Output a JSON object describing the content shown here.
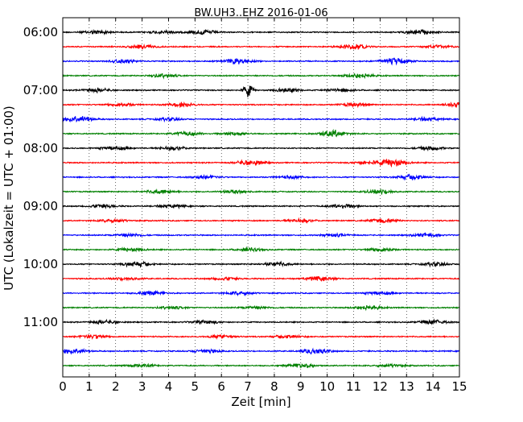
{
  "chart_data": {
    "type": "line",
    "title": "BW.UH3..EHZ 2016-01-06",
    "xlabel": "Zeit  [min]",
    "ylabel": "UTC (Lokalzeit = UTC + 01:00)",
    "xlim": [
      0,
      15
    ],
    "x_ticks": [
      "0",
      "1",
      "2",
      "3",
      "4",
      "5",
      "6",
      "7",
      "8",
      "9",
      "10",
      "11",
      "12",
      "13",
      "14",
      "15"
    ],
    "y_ticks": [
      "06:00",
      "07:00",
      "08:00",
      "09:00",
      "10:00",
      "11:00"
    ],
    "trace_minutes_per_line": 15,
    "grid": "vertical dotted at each minute",
    "trace_colors": [
      "#000000",
      "#ff0000",
      "#0000ff",
      "#008000"
    ],
    "series": [
      {
        "start": "06:00",
        "color": "#000000",
        "events": [
          [
            1.3,
            0.7
          ],
          [
            3.8,
            0.6
          ],
          [
            5.3,
            0.8
          ],
          [
            13.5,
            0.9
          ]
        ]
      },
      {
        "start": "06:15",
        "color": "#ff0000",
        "events": [
          [
            3.0,
            0.6
          ],
          [
            11.0,
            1.0
          ],
          [
            14.2,
            0.5
          ]
        ]
      },
      {
        "start": "06:30",
        "color": "#0000ff",
        "events": [
          [
            2.3,
            0.6
          ],
          [
            6.6,
            1.0
          ],
          [
            12.6,
            1.2
          ]
        ]
      },
      {
        "start": "06:45",
        "color": "#008000",
        "events": [
          [
            3.8,
            0.7
          ],
          [
            11.2,
            0.9
          ]
        ]
      },
      {
        "start": "07:00",
        "color": "#000000",
        "events": [
          [
            1.3,
            0.7
          ],
          [
            7.0,
            2.6
          ],
          [
            8.5,
            0.7
          ],
          [
            10.5,
            0.6
          ]
        ]
      },
      {
        "start": "07:15",
        "color": "#ff0000",
        "events": [
          [
            2.2,
            0.6
          ],
          [
            4.5,
            0.7
          ],
          [
            11.0,
            0.6
          ],
          [
            15.0,
            1.2
          ]
        ]
      },
      {
        "start": "07:30",
        "color": "#0000ff",
        "events": [
          [
            0.6,
            1.3
          ],
          [
            4.0,
            0.5
          ],
          [
            13.8,
            0.6
          ]
        ]
      },
      {
        "start": "07:45",
        "color": "#008000",
        "events": [
          [
            4.7,
            0.7
          ],
          [
            6.5,
            0.6
          ],
          [
            10.2,
            1.2
          ]
        ]
      },
      {
        "start": "08:00",
        "color": "#000000",
        "events": [
          [
            2.0,
            0.6
          ],
          [
            4.2,
            0.6
          ],
          [
            13.9,
            0.6
          ]
        ]
      },
      {
        "start": "08:15",
        "color": "#ff0000",
        "events": [
          [
            7.1,
            1.0
          ],
          [
            11.5,
            0.6
          ],
          [
            12.5,
            1.4
          ]
        ]
      },
      {
        "start": "08:30",
        "color": "#0000ff",
        "events": [
          [
            5.4,
            0.5
          ],
          [
            8.6,
            0.5
          ],
          [
            13.2,
            1.0
          ]
        ]
      },
      {
        "start": "08:45",
        "color": "#008000",
        "events": [
          [
            3.7,
            0.7
          ],
          [
            6.5,
            0.6
          ],
          [
            12.0,
            0.8
          ]
        ]
      },
      {
        "start": "09:00",
        "color": "#000000",
        "events": [
          [
            1.5,
            0.6
          ],
          [
            4.1,
            0.6
          ],
          [
            10.6,
            0.8
          ]
        ]
      },
      {
        "start": "09:15",
        "color": "#ff0000",
        "events": [
          [
            1.9,
            0.6
          ],
          [
            9.0,
            0.6
          ],
          [
            12.1,
            0.8
          ]
        ]
      },
      {
        "start": "09:30",
        "color": "#0000ff",
        "events": [
          [
            2.5,
            0.6
          ],
          [
            10.3,
            0.5
          ],
          [
            13.7,
            0.6
          ]
        ]
      },
      {
        "start": "09:45",
        "color": "#008000",
        "events": [
          [
            2.6,
            0.6
          ],
          [
            7.1,
            0.6
          ],
          [
            12.0,
            0.7
          ]
        ]
      },
      {
        "start": "10:00",
        "color": "#000000",
        "events": [
          [
            2.8,
            0.9
          ],
          [
            8.1,
            0.7
          ],
          [
            14.1,
            0.6
          ]
        ]
      },
      {
        "start": "10:15",
        "color": "#ff0000",
        "events": [
          [
            2.4,
            0.5
          ],
          [
            6.1,
            0.5
          ],
          [
            9.7,
            0.8
          ]
        ]
      },
      {
        "start": "10:30",
        "color": "#0000ff",
        "events": [
          [
            3.3,
            0.7
          ],
          [
            6.7,
            0.6
          ],
          [
            12.0,
            0.5
          ]
        ]
      },
      {
        "start": "10:45",
        "color": "#008000",
        "events": [
          [
            4.1,
            0.5
          ],
          [
            7.3,
            0.5
          ],
          [
            11.5,
            0.8
          ]
        ]
      },
      {
        "start": "11:00",
        "color": "#000000",
        "events": [
          [
            1.6,
            0.6
          ],
          [
            5.4,
            0.6
          ],
          [
            14.0,
            0.8
          ]
        ]
      },
      {
        "start": "11:15",
        "color": "#ff0000",
        "events": [
          [
            1.2,
            0.7
          ],
          [
            6.0,
            0.6
          ],
          [
            8.5,
            0.6
          ]
        ]
      },
      {
        "start": "11:30",
        "color": "#0000ff",
        "events": [
          [
            0.4,
            1.0
          ],
          [
            5.4,
            0.6
          ],
          [
            9.6,
            1.0
          ]
        ]
      },
      {
        "start": "11:45",
        "color": "#008000",
        "events": [
          [
            3.0,
            0.5
          ],
          [
            9.0,
            0.8
          ],
          [
            12.4,
            0.5
          ]
        ]
      }
    ]
  }
}
